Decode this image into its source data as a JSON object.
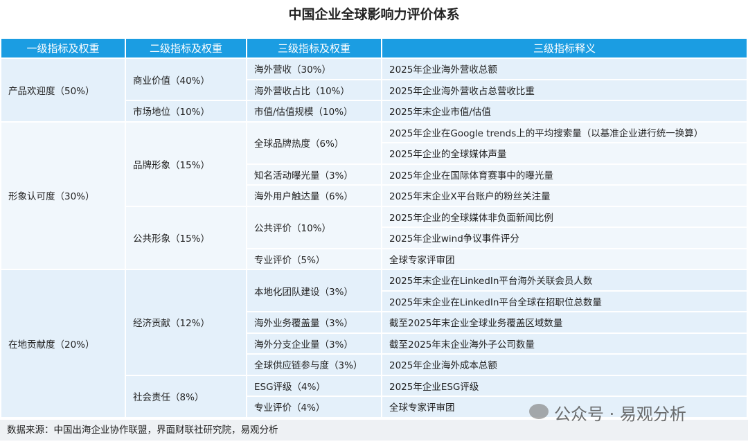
{
  "title": "中国企业全球影响力评价体系",
  "table": {
    "header": [
      "一级指标及权重",
      "二级指标及权重",
      "三级指标及权重",
      "三级指标释义"
    ],
    "groups": [
      {
        "name": "产品欢迎度（50%）",
        "children": [
          {
            "name": "商业价值（40%）",
            "children": [
              {
                "name": "海外营收（30%）",
                "desc": [
                  "2025年企业海外营收总额"
                ]
              },
              {
                "name": "海外营收占比（10%）",
                "desc": [
                  "2025年企业海外营收占总营收比重"
                ]
              }
            ]
          },
          {
            "name": "市场地位（10%）",
            "children": [
              {
                "name": "市值/估值规模（10%）",
                "desc": [
                  "2025年末企业市值/估值"
                ]
              }
            ]
          }
        ]
      },
      {
        "name": "形象认可度（30%）",
        "children": [
          {
            "name": "品牌形象（15%）",
            "children": [
              {
                "name": "全球品牌热度（6%）",
                "desc": [
                  "2025年企业在Google trends上的平均搜索量（以基准企业进行统一换算）",
                  "2025年企业的全球媒体声量"
                ]
              },
              {
                "name": "知名活动曝光量（3%）",
                "desc": [
                  "2025年企业在国际体育赛事中的曝光量"
                ]
              },
              {
                "name": "海外用户触达量（6%）",
                "desc": [
                  "2025年末企业X平台账户的粉丝关注量"
                ]
              }
            ]
          },
          {
            "name": "公共形象（15%）",
            "children": [
              {
                "name": "公共评价（10%）",
                "desc": [
                  "2025年企业的全球媒体非负面新闻比例",
                  "2025年企业wind争议事件评分"
                ]
              },
              {
                "name": "专业评价（5%）",
                "desc": [
                  "全球专家评审团"
                ]
              }
            ]
          }
        ]
      },
      {
        "name": "在地贡献度（20%）",
        "children": [
          {
            "name": "经济贡献（12%）",
            "children": [
              {
                "name": "本地化团队建设（3%）",
                "desc": [
                  "2025年末企业在LinkedIn平台海外关联会员人数",
                  "2025年末企业在LinkedIn平台全球在招职位总数量"
                ]
              },
              {
                "name": "海外业务覆盖量（3%）",
                "desc": [
                  "截至2025年末企业全球业务覆盖区域数量"
                ]
              },
              {
                "name": "海外分支企业量（3%）",
                "desc": [
                  "截至2025年末企业海外子公司数量"
                ]
              },
              {
                "name": "全球供应链参与度（3%）",
                "desc": [
                  "2025年企业海外成本总额"
                ]
              }
            ]
          },
          {
            "name": "社会责任（8%）",
            "children": [
              {
                "name": "ESG评级（4%）",
                "desc": [
                  "2025年企业ESG评级"
                ]
              },
              {
                "name": "专业评价（4%）",
                "desc": [
                  "全球专家评审团"
                ]
              }
            ]
          }
        ]
      }
    ]
  },
  "footer": {
    "source": "数据来源：中国出海企业协作联盟，界面财联社研究院，易观分析"
  },
  "watermark": {
    "text": "公众号 · 易观分析"
  }
}
